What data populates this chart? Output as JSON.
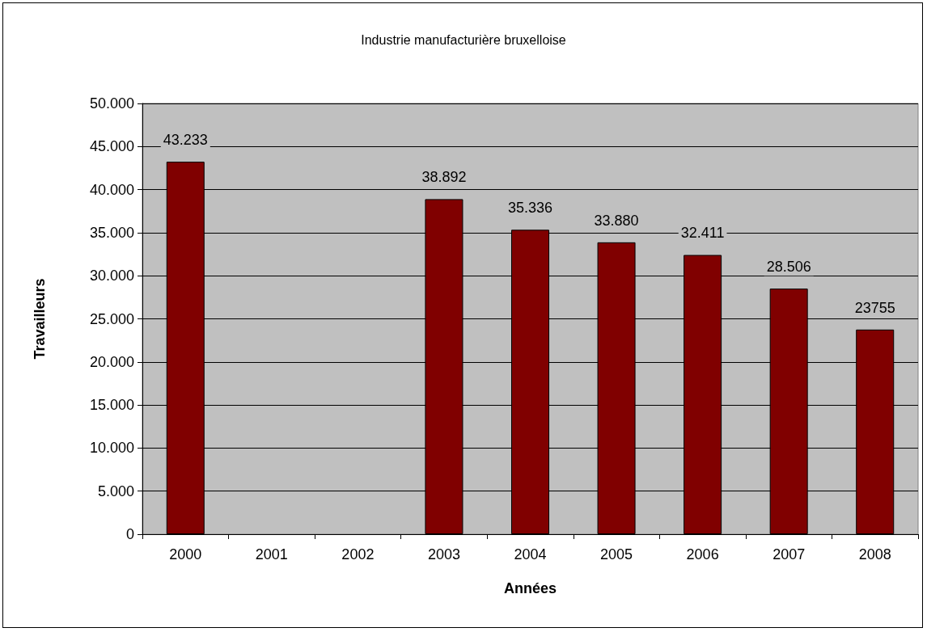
{
  "chart_data": {
    "type": "bar",
    "title": "Industrie manufacturière bruxelloise",
    "xlabel": "Années",
    "ylabel": "Travailleurs",
    "categories": [
      "2000",
      "2001",
      "2002",
      "2003",
      "2004",
      "2005",
      "2006",
      "2007",
      "2008"
    ],
    "values": [
      43233,
      null,
      null,
      38892,
      35336,
      33880,
      32411,
      28506,
      23755
    ],
    "value_labels": [
      "43.233",
      null,
      null,
      "38.892",
      "35.336",
      "33.880",
      "32.411",
      "28.506",
      "23755"
    ],
    "color": "#800000",
    "ylim": [
      0,
      50000
    ],
    "yticks": [
      0,
      {
        "value": 5000,
        "label": "5.000"
      },
      {
        "value": 10000,
        "label": "10.000"
      },
      {
        "value": 15000,
        "label": "15.000"
      },
      {
        "value": 20000,
        "label": "20.000"
      },
      {
        "value": 25000,
        "label": "25.000"
      },
      {
        "value": 30000,
        "label": "30.000"
      },
      {
        "value": 35000,
        "label": "35.000"
      },
      {
        "value": 40000,
        "label": "40.000"
      },
      {
        "value": 45000,
        "label": "45.000"
      },
      {
        "value": 50000,
        "label": "50.000"
      }
    ],
    "grid": "y"
  }
}
